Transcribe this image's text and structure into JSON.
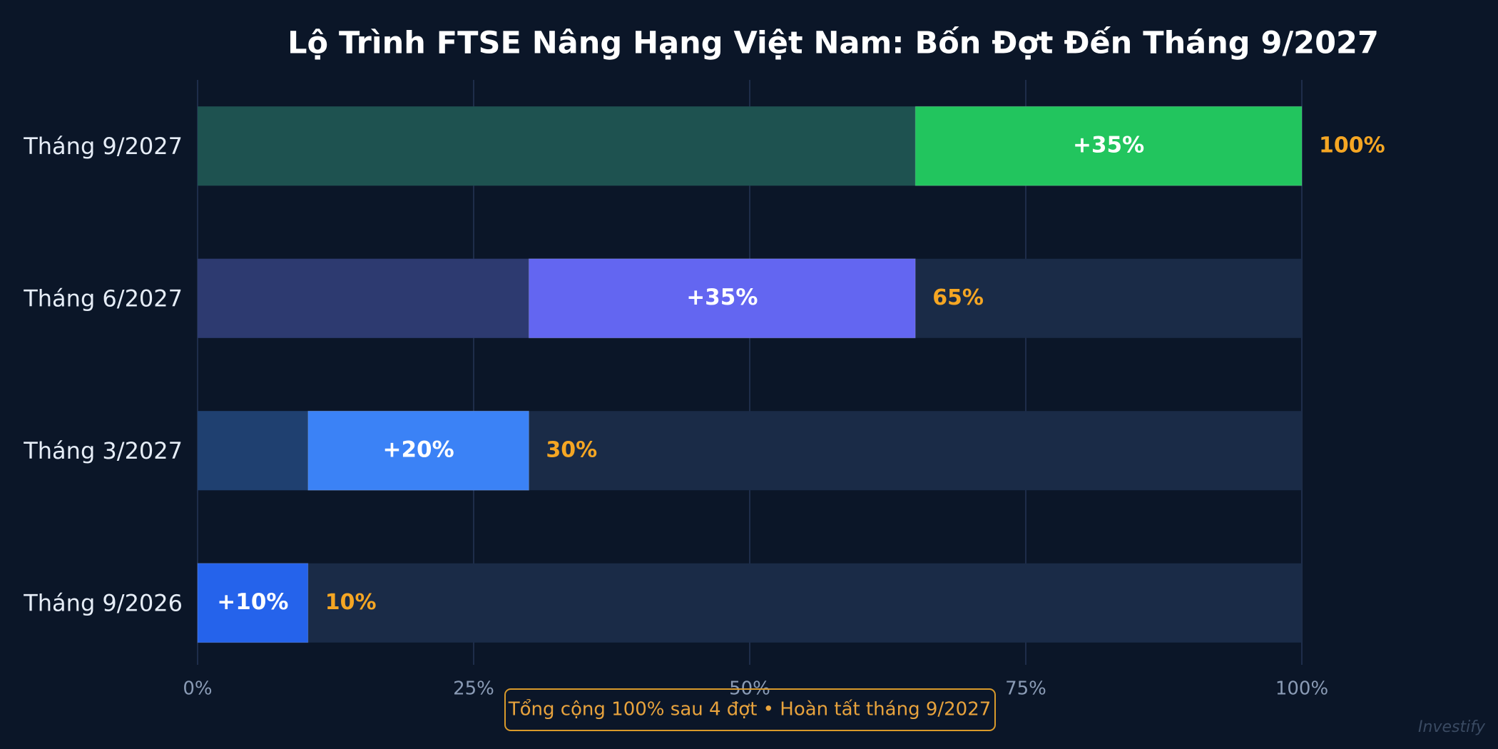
{
  "chart_data": {
    "type": "stacked-barh",
    "title": "Lộ Trình FTSE Nâng Hạng Việt Nam: Bốn Đợt Đến Tháng 9/2027",
    "categories": [
      "Tháng 9/2027",
      "Tháng 6/2027",
      "Tháng 3/2027",
      "Tháng 9/2026"
    ],
    "series": [
      {
        "colors": [
          "#1e5250",
          "#2d3a70",
          "#1f4070",
          "#1e3a6e"
        ],
        "values": [
          65,
          30,
          10,
          0
        ]
      },
      {
        "colors": [
          "#22c55e",
          "#6366f1",
          "#3b82f6",
          "#2563eb"
        ],
        "values": [
          35,
          35,
          20,
          10
        ],
        "value_labels": [
          "+35%",
          "+35%",
          "+20%",
          "+10%"
        ]
      }
    ],
    "totals": [
      100,
      65,
      30,
      10
    ],
    "total_labels": [
      "100%",
      "65%",
      "30%",
      "10%"
    ],
    "xlim": [
      0,
      100
    ],
    "xticks": [
      {
        "value": 0,
        "label": "0%"
      },
      {
        "value": 25,
        "label": "25%"
      },
      {
        "value": 50,
        "label": "50%"
      },
      {
        "value": 75,
        "label": "75%"
      },
      {
        "value": 100,
        "label": "100%"
      }
    ],
    "grid": true,
    "note": "Tổng cộng 100% sau 4 đợt  •  Hoàn tất tháng 9/2027",
    "watermark": "Investify"
  }
}
